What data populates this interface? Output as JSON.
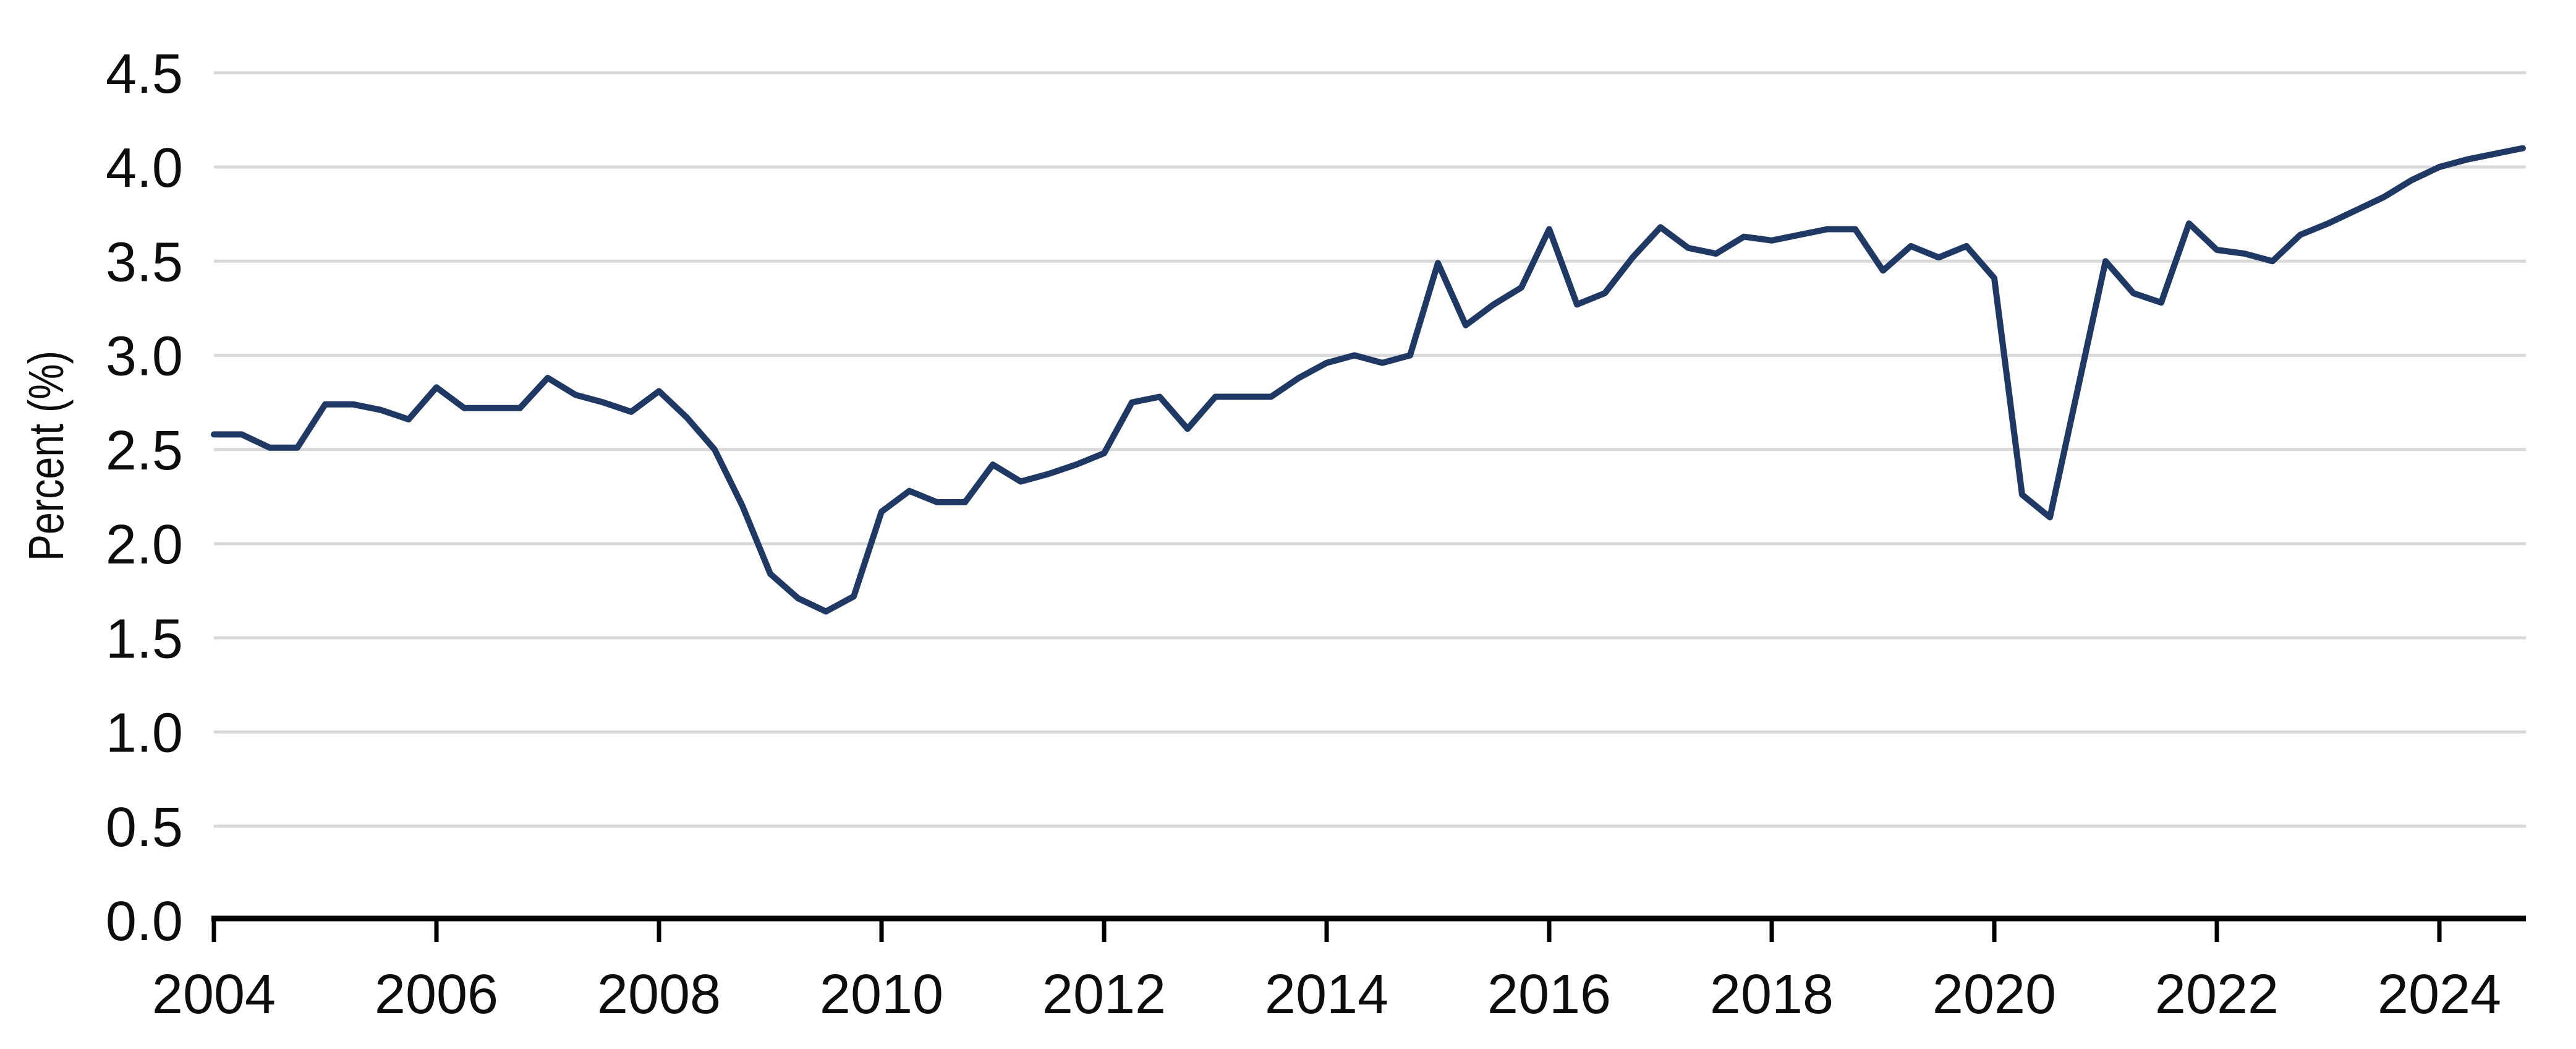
{
  "chart_data": {
    "type": "line",
    "title": "",
    "ylabel": "Percent (%)",
    "xlabel": "",
    "frequency": "quarterly",
    "start_year": 2004,
    "series": [
      {
        "name": "percent",
        "values": [
          2.58,
          2.58,
          2.51,
          2.51,
          2.74,
          2.74,
          2.71,
          2.66,
          2.83,
          2.72,
          2.72,
          2.72,
          2.88,
          2.79,
          2.75,
          2.7,
          2.81,
          2.67,
          2.5,
          2.2,
          1.84,
          1.71,
          1.64,
          1.72,
          2.17,
          2.28,
          2.22,
          2.22,
          2.42,
          2.33,
          2.37,
          2.42,
          2.48,
          2.75,
          2.78,
          2.61,
          2.78,
          2.78,
          2.78,
          2.88,
          2.96,
          3.0,
          2.96,
          3.0,
          3.49,
          3.16,
          3.27,
          3.36,
          3.67,
          3.27,
          3.33,
          3.52,
          3.68,
          3.57,
          3.54,
          3.63,
          3.61,
          3.64,
          3.67,
          3.67,
          3.45,
          3.58,
          3.52,
          3.58,
          3.41,
          2.26,
          2.14,
          2.82,
          3.5,
          3.33,
          3.28,
          3.7,
          3.56,
          3.54,
          3.5,
          3.64,
          3.7,
          3.77,
          3.84,
          3.93,
          4.0,
          4.04,
          4.07,
          4.1
        ]
      }
    ],
    "x_tick_labels": [
      "2004",
      "2006",
      "2008",
      "2010",
      "2012",
      "2014",
      "2016",
      "2018",
      "2020",
      "2022",
      "2024"
    ],
    "y_tick_labels": [
      "0.0",
      "0.5",
      "1.0",
      "1.5",
      "2.0",
      "2.5",
      "3.0",
      "3.5",
      "4.0",
      "4.5"
    ],
    "ylim": [
      0.0,
      4.5
    ],
    "y_tick_step": 0.5,
    "grid": "horizontal-only",
    "legend": "none",
    "colors": {
      "line": "#1F3864",
      "gridline": "#D9D9D9",
      "axis": "#000000",
      "text": "#0D0D0D",
      "background": "#FFFFFF"
    }
  }
}
